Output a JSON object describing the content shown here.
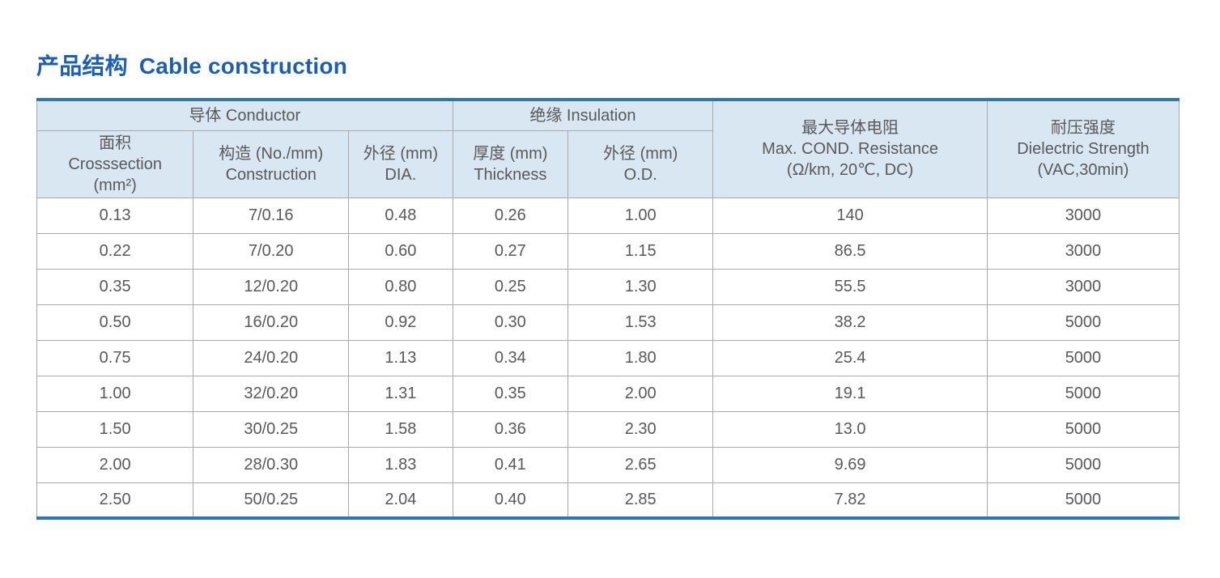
{
  "title": {
    "zh": "产品结构",
    "en": "Cable construction"
  },
  "colors": {
    "title_blue": "#1b5eb5",
    "accent_blue": "#2e75b6",
    "header_bg": "#d9e7f3",
    "grid_line": "#a9a9a9",
    "text_gray": "#595959"
  },
  "table": {
    "groups": {
      "conductor": "导体 Conductor",
      "insulation": "绝缘 Insulation"
    },
    "columns": {
      "crosssection": {
        "line1": "面积",
        "line2": "Crosssection",
        "line3": "(mm²)"
      },
      "construction": {
        "line1": "构造 (No./mm)",
        "line2": "Construction"
      },
      "dia": {
        "line1": "外径 (mm)",
        "line2": "DIA."
      },
      "thickness": {
        "line1": "厚度 (mm)",
        "line2": "Thickness"
      },
      "od": {
        "line1": "外径 (mm)",
        "line2": "O.D."
      },
      "resistance": {
        "line1": "最大导体电阻",
        "line2": "Max. COND. Resistance",
        "line3": "(Ω/km, 20℃, DC)"
      },
      "dielectric": {
        "line1": "耐压强度",
        "line2": "Dielectric Strength",
        "line3": "(VAC,30min)"
      }
    },
    "rows": [
      [
        "0.13",
        "7/0.16",
        "0.48",
        "0.26",
        "1.00",
        "140",
        "3000"
      ],
      [
        "0.22",
        "7/0.20",
        "0.60",
        "0.27",
        "1.15",
        "86.5",
        "3000"
      ],
      [
        "0.35",
        "12/0.20",
        "0.80",
        "0.25",
        "1.30",
        "55.5",
        "3000"
      ],
      [
        "0.50",
        "16/0.20",
        "0.92",
        "0.30",
        "1.53",
        "38.2",
        "5000"
      ],
      [
        "0.75",
        "24/0.20",
        "1.13",
        "0.34",
        "1.80",
        "25.4",
        "5000"
      ],
      [
        "1.00",
        "32/0.20",
        "1.31",
        "0.35",
        "2.00",
        "19.1",
        "5000"
      ],
      [
        "1.50",
        "30/0.25",
        "1.58",
        "0.36",
        "2.30",
        "13.0",
        "5000"
      ],
      [
        "2.00",
        "28/0.30",
        "1.83",
        "0.41",
        "2.65",
        "9.69",
        "5000"
      ],
      [
        "2.50",
        "50/0.25",
        "2.04",
        "0.40",
        "2.85",
        "7.82",
        "5000"
      ]
    ]
  }
}
